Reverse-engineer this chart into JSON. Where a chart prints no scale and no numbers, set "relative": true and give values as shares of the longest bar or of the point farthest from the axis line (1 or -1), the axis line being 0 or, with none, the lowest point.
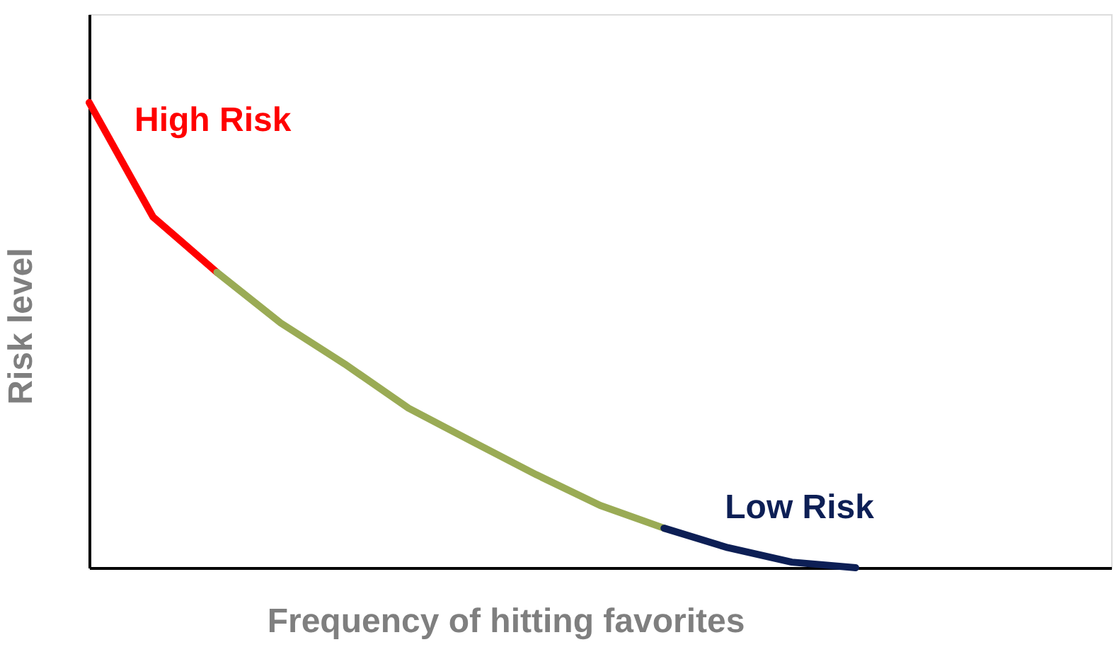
{
  "chart_data": {
    "type": "line",
    "relative": true,
    "xlabel": "Frequency of hitting favorites",
    "ylabel": "Risk level",
    "grid": false,
    "marker": "none",
    "line_style": "solid",
    "categories": [
      null,
      null,
      null,
      null,
      null,
      null,
      null,
      null,
      null,
      null,
      null,
      null,
      null,
      null,
      null,
      null,
      null
    ],
    "series": [
      {
        "name": "High Risk",
        "color": "#ff0000",
        "values": [
          1.0,
          0.754,
          0.635,
          null,
          null,
          null,
          null,
          null,
          null,
          null,
          null,
          null,
          null,
          null,
          null,
          null,
          null
        ]
      },
      {
        "color": "#9aab55",
        "values": [
          null,
          null,
          0.635,
          0.526,
          0.438,
          0.343,
          0.271,
          0.2,
          0.134,
          0.085,
          null,
          null,
          null,
          null,
          null,
          null,
          null
        ]
      },
      {
        "name": "Low Risk",
        "color": "#0d1f55",
        "values": [
          null,
          null,
          null,
          null,
          null,
          null,
          null,
          null,
          null,
          0.085,
          0.043,
          0.012,
          0,
          null,
          null,
          null,
          null
        ]
      }
    ]
  }
}
